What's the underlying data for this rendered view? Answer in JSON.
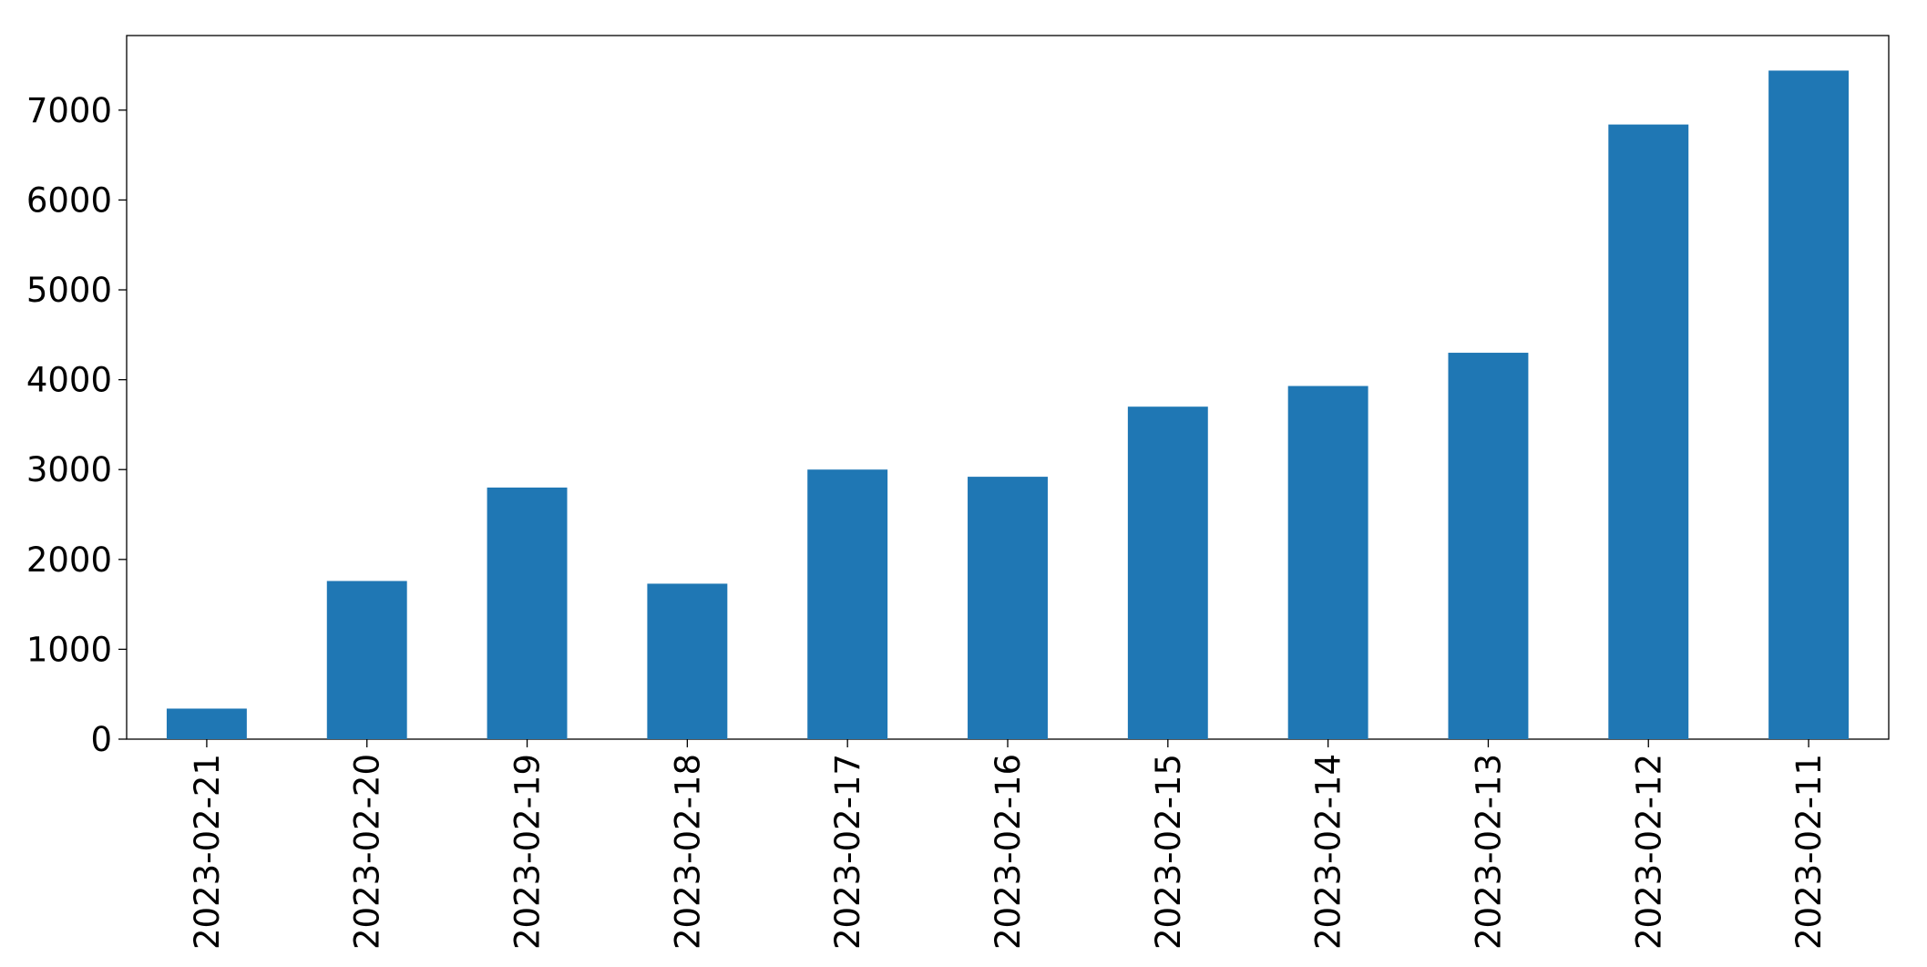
{
  "chart_data": {
    "type": "bar",
    "categories": [
      "2023-02-21",
      "2023-02-20",
      "2023-02-19",
      "2023-02-18",
      "2023-02-17",
      "2023-02-16",
      "2023-02-15",
      "2023-02-14",
      "2023-02-13",
      "2023-02-12",
      "2023-02-11"
    ],
    "values": [
      340,
      1760,
      2800,
      1730,
      3000,
      2920,
      3700,
      3930,
      4300,
      6840,
      7440
    ],
    "color": "#1f77b4",
    "ylim": [
      0,
      7830
    ],
    "yticks": [
      0,
      1000,
      2000,
      3000,
      4000,
      5000,
      6000,
      7000
    ],
    "grid": false
  }
}
